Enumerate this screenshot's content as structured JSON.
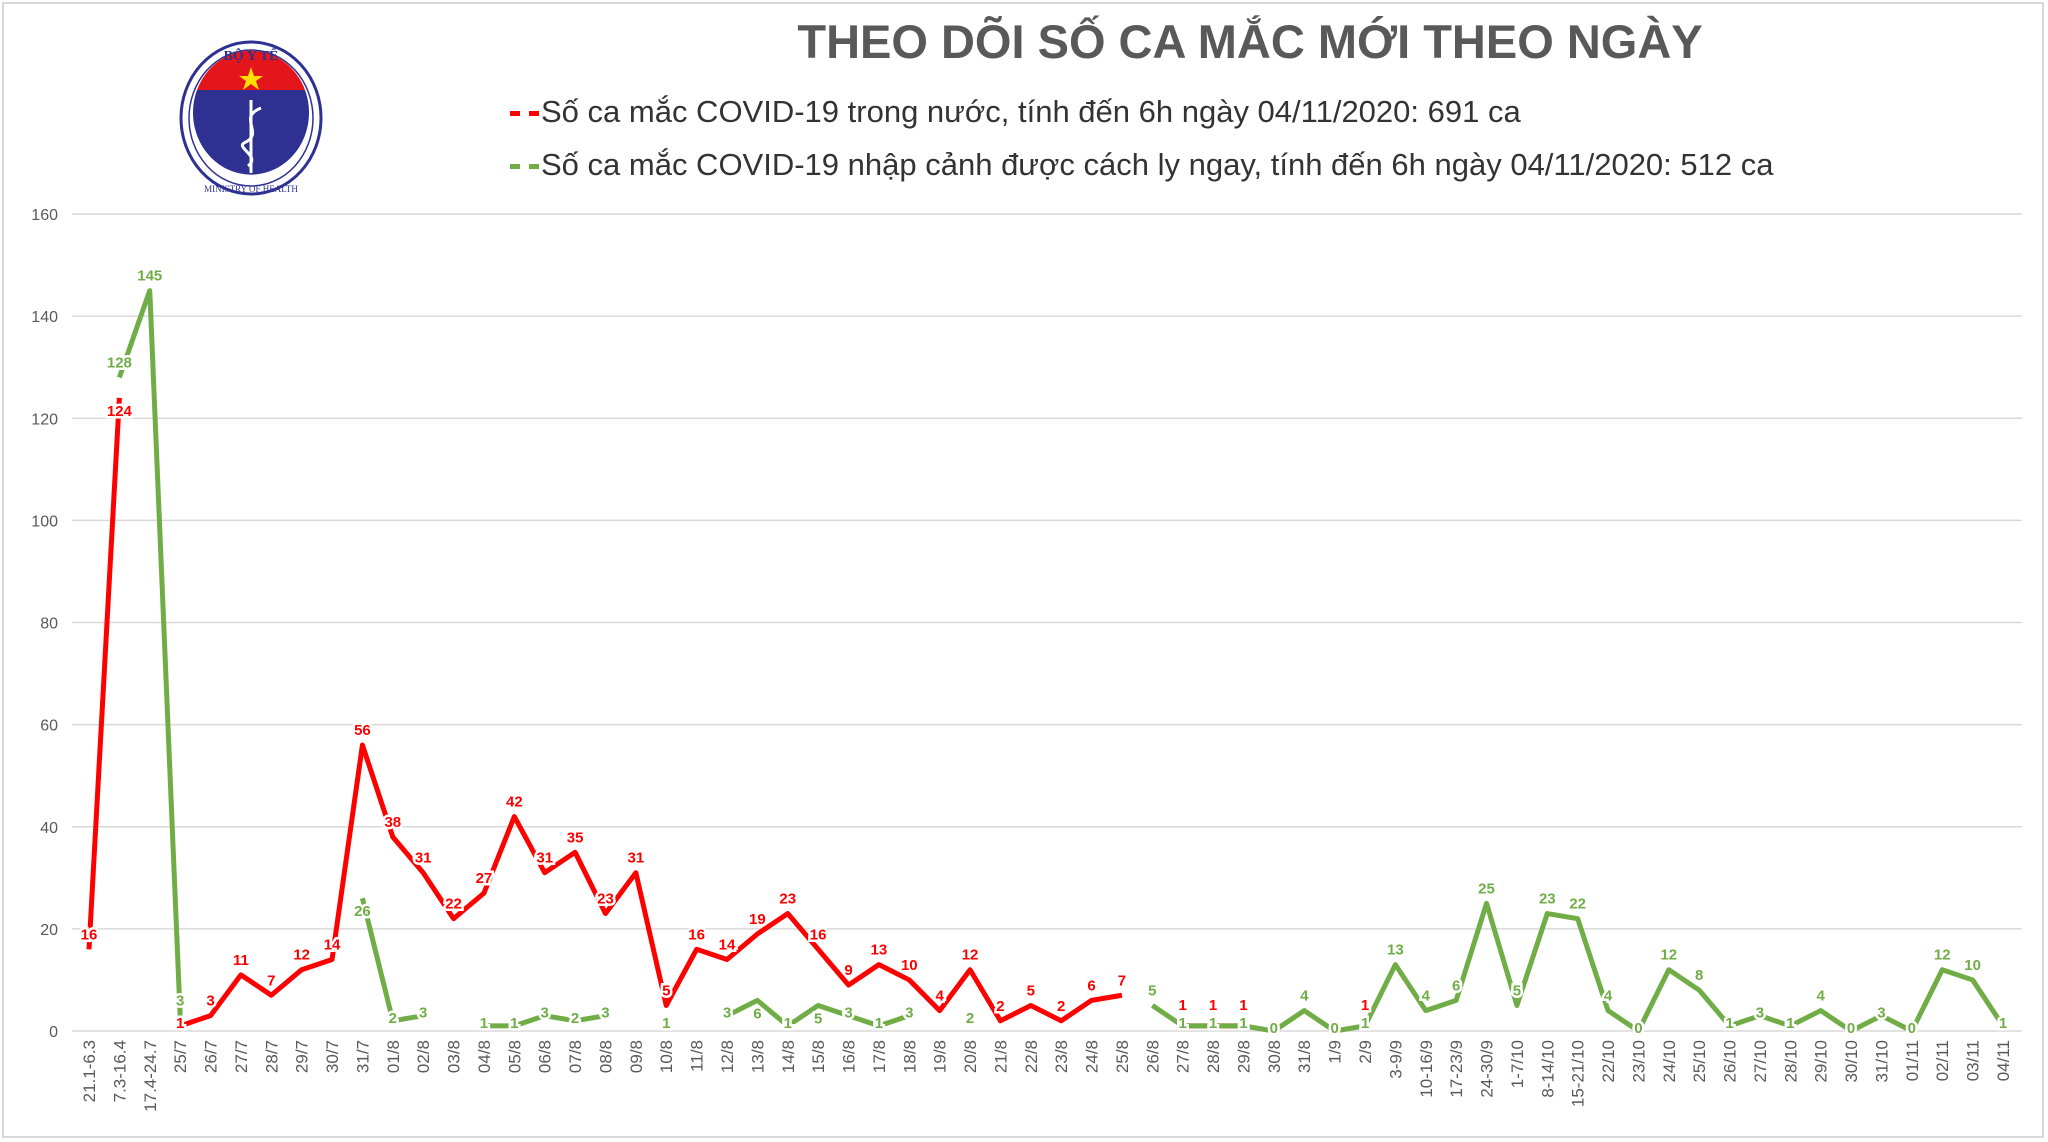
{
  "header": {
    "title": "THEO DÕI SỐ CA MẮC MỚI THEO NGÀY",
    "logo_text": [
      "BỘ Y TẾ",
      "MINISTRY OF HEALTH"
    ]
  },
  "chart_data": {
    "type": "line",
    "title": "THEO DÕI SỐ CA MẮC MỚI THEO NGÀY",
    "xlabel": "",
    "ylabel": "",
    "ylim": [
      0,
      160
    ],
    "yticks": [
      0,
      20,
      40,
      60,
      80,
      100,
      120,
      140,
      160
    ],
    "grid": true,
    "legend_position": "top",
    "categories": [
      "21.1-6.3",
      "7.3-16.4",
      "17.4-24.7",
      "25/7",
      "26/7",
      "27/7",
      "28/7",
      "29/7",
      "30/7",
      "31/7",
      "01/8",
      "02/8",
      "03/8",
      "04/8",
      "05/8",
      "06/8",
      "07/8",
      "08/8",
      "09/8",
      "10/8",
      "11/8",
      "12/8",
      "13/8",
      "14/8",
      "15/8",
      "16/8",
      "17/8",
      "18/8",
      "19/8",
      "20/8",
      "21/8",
      "22/8",
      "23/8",
      "24/8",
      "25/8",
      "26/8",
      "27/8",
      "28/8",
      "29/8",
      "30/8",
      "31/8",
      "1/9",
      "2/9",
      "3-9/9",
      "10-16/9",
      "17-23/9",
      "24-30/9",
      "1-7/10",
      "8-14/10",
      "15-21/10",
      "22/10",
      "23/10",
      "24/10",
      "25/10",
      "26/10",
      "27/10",
      "28/10",
      "29/10",
      "30/10",
      "31/10",
      "01/11",
      "02/11",
      "03/11",
      "04/11"
    ],
    "series": [
      {
        "name": "Số ca mắc COVID-19 trong nước, tính đến 6h ngày 04/11/2020: 691 ca",
        "color": "#ff0000",
        "values": [
          16,
          124,
          null,
          1,
          3,
          11,
          7,
          12,
          14,
          56,
          38,
          31,
          22,
          27,
          42,
          31,
          35,
          23,
          31,
          5,
          16,
          14,
          19,
          23,
          16,
          9,
          13,
          10,
          4,
          12,
          2,
          5,
          2,
          6,
          7,
          null,
          1,
          1,
          1,
          null,
          null,
          null,
          1,
          null,
          null,
          null,
          null,
          null,
          null,
          null,
          null,
          null,
          null,
          null,
          null,
          null,
          null,
          null,
          null,
          null,
          null,
          null,
          null,
          null
        ]
      },
      {
        "name": "Số ca mắc COVID-19 nhập cảnh được cách ly ngay, tính đến 6h ngày 04/11/2020: 512 ca",
        "color": "#70ad47",
        "values": [
          null,
          128,
          145,
          3,
          null,
          null,
          null,
          null,
          null,
          26,
          2,
          3,
          null,
          1,
          1,
          3,
          2,
          3,
          null,
          1,
          null,
          3,
          6,
          1,
          5,
          3,
          1,
          3,
          null,
          2,
          null,
          null,
          null,
          null,
          null,
          5,
          1,
          1,
          1,
          0,
          4,
          0,
          1,
          13,
          4,
          6,
          25,
          5,
          23,
          22,
          4,
          0,
          12,
          8,
          1,
          3,
          1,
          4,
          0,
          3,
          0,
          12,
          10,
          1
        ]
      }
    ]
  }
}
